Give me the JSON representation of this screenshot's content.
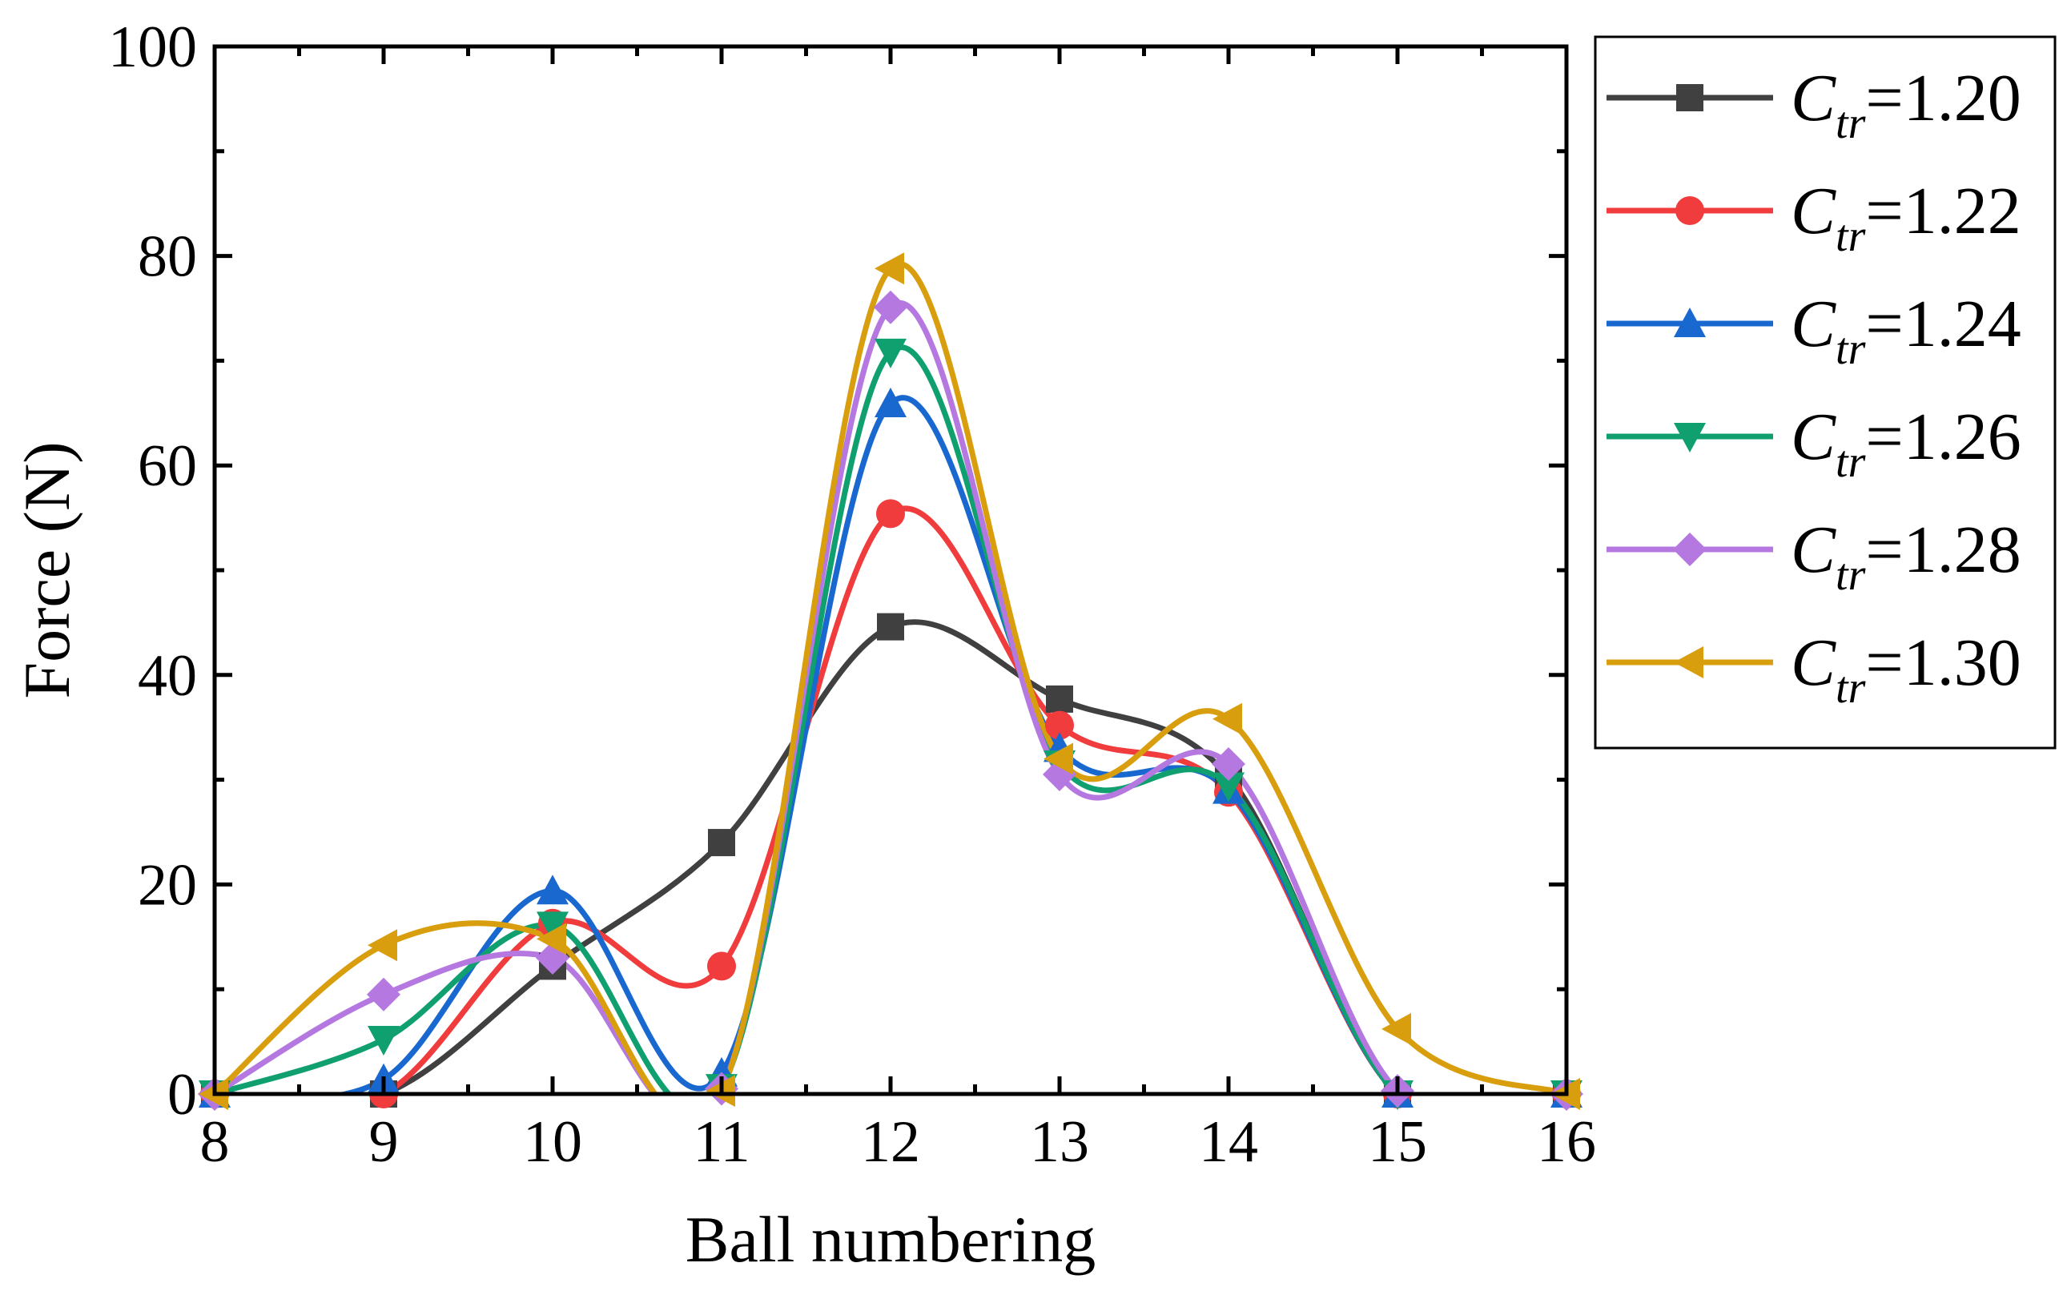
{
  "chart_data": {
    "type": "line",
    "title": "",
    "xlabel": "Ball numbering",
    "ylabel": "Force (N)",
    "xlim": [
      8,
      16
    ],
    "ylim": [
      0,
      100
    ],
    "x_ticks": [
      8,
      9,
      10,
      11,
      12,
      13,
      14,
      15,
      16
    ],
    "y_ticks": [
      0,
      20,
      40,
      60,
      80,
      100
    ],
    "x_tick_labels": [
      "8",
      "9",
      "10",
      "11",
      "12",
      "13",
      "14",
      "15",
      "16"
    ],
    "y_tick_labels": [
      "0",
      "20",
      "40",
      "60",
      "80",
      "100"
    ],
    "legend_position": "outside-right",
    "x": [
      8,
      9,
      10,
      11,
      12,
      13,
      14,
      15,
      16
    ],
    "series": [
      {
        "name": "C_tr=1.20",
        "label_main": "C",
        "label_sub": "tr",
        "label_value": "=1.20",
        "color": "#404040",
        "marker": "square",
        "values": [
          0,
          0,
          12.2,
          24,
          44.6,
          37.7,
          30.3,
          0,
          0
        ]
      },
      {
        "name": "C_tr=1.22",
        "label_main": "C",
        "label_sub": "tr",
        "label_value": "=1.22",
        "color": "#f03c3c",
        "marker": "circle",
        "values": [
          0,
          0,
          16.3,
          12.2,
          55.4,
          35.2,
          28.8,
          0,
          0
        ]
      },
      {
        "name": "C_tr=1.24",
        "label_main": "C",
        "label_sub": "tr",
        "label_value": "=1.24",
        "color": "#1868d0",
        "marker": "triangle-up",
        "values": [
          0,
          1.4,
          19.4,
          2.0,
          65.9,
          33.0,
          29.0,
          0,
          0
        ]
      },
      {
        "name": "C_tr=1.26",
        "label_main": "C",
        "label_sub": "tr",
        "label_value": "=1.26",
        "color": "#10a070",
        "marker": "triangle-down",
        "values": [
          0,
          5.2,
          16.1,
          0.6,
          70.8,
          31.5,
          29.4,
          0,
          0
        ]
      },
      {
        "name": "C_tr=1.28",
        "label_main": "C",
        "label_sub": "tr",
        "label_value": "=1.28",
        "color": "#b478e0",
        "marker": "diamond",
        "values": [
          0,
          9.5,
          13.0,
          0.5,
          75.1,
          30.5,
          31.5,
          0.3,
          0
        ]
      },
      {
        "name": "C_tr=1.30",
        "label_main": "C",
        "label_sub": "tr",
        "label_value": "=1.30",
        "color": "#d89e0e",
        "marker": "triangle-left",
        "values": [
          0,
          14.2,
          14.8,
          0.3,
          78.8,
          32.0,
          35.8,
          6.2,
          0
        ]
      }
    ]
  }
}
